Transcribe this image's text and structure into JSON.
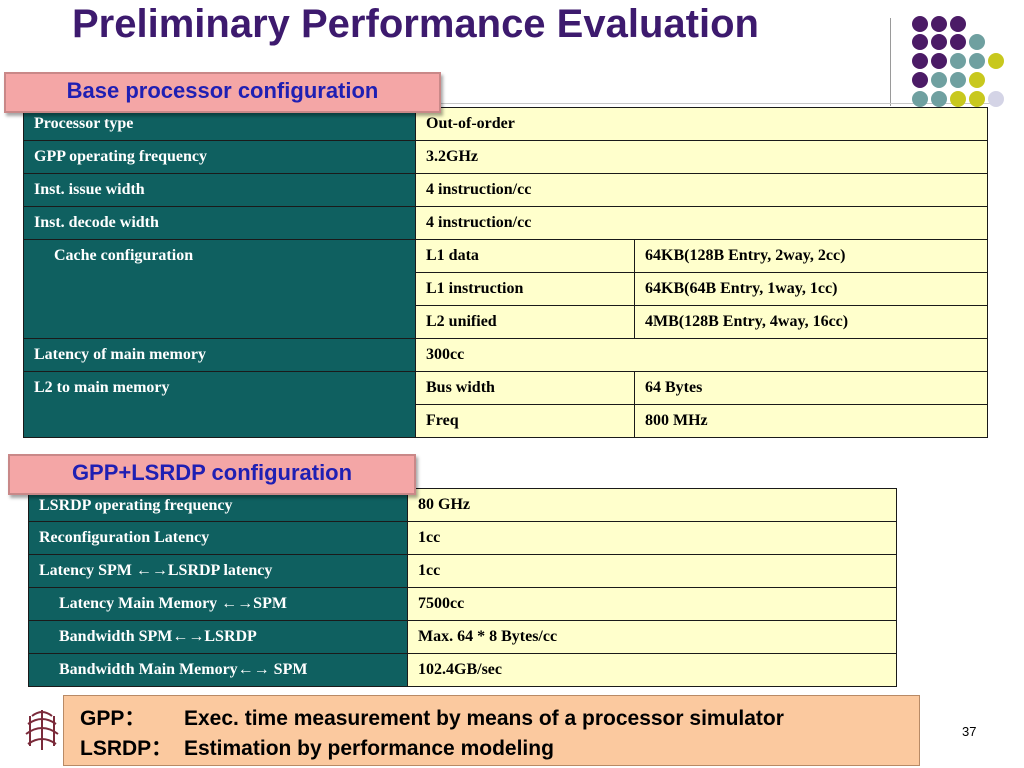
{
  "title": "Preliminary Performance Evaluation",
  "base_label": "Base processor configuration",
  "base": {
    "processor_type": {
      "key": "Processor type",
      "value": "Out-of-order"
    },
    "gpp_freq": {
      "key": "GPP operating frequency",
      "value": "3.2GHz"
    },
    "issue_width": {
      "key": "Inst. issue width",
      "value": "4 instruction/cc"
    },
    "decode_width": {
      "key": "Inst. decode width",
      "value": "4 instruction/cc"
    },
    "cache": {
      "key": "Cache configuration",
      "rows": [
        {
          "name": "L1 data",
          "value": "64KB(128B Entry, 2way, 2cc)"
        },
        {
          "name": "L1 instruction",
          "value": "64KB(64B Entry, 1way, 1cc)"
        },
        {
          "name": "L2 unified",
          "value": "4MB(128B Entry, 4way, 16cc)"
        }
      ]
    },
    "mem_latency": {
      "key": "Latency of main memory",
      "value": "300cc"
    },
    "l2_to_mem": {
      "key": "L2 to main memory",
      "rows": [
        {
          "name": "Bus width",
          "value": "64 Bytes"
        },
        {
          "name": "Freq",
          "value": "800 MHz"
        }
      ]
    }
  },
  "lsrdp_label": "GPP+LSRDP configuration",
  "lsrdp": [
    {
      "key": "LSRDP operating frequency",
      "value": "80 GHz"
    },
    {
      "key": "Reconfiguration Latency",
      "value": "1cc"
    },
    {
      "key": "Latency SPM ←→LSRDP latency",
      "value": "1cc"
    },
    {
      "key": "Latency Main Memory ←→SPM",
      "value": "7500cc"
    },
    {
      "key": "Bandwidth SPM←→LSRDP",
      "value": "Max. 64 * 8 Bytes/cc"
    },
    {
      "key": "Bandwidth Main Memory←→ SPM",
      "value": "102.4GB/sec"
    }
  ],
  "note": [
    {
      "key": "GPP：",
      "text": "Exec. time measurement by means of a processor simulator"
    },
    {
      "key": "LSRDP：",
      "text": "Estimation by performance modeling"
    }
  ],
  "page_number": "37",
  "colors": {
    "title": "#3d1a6e",
    "table_key_bg": "#0f6060",
    "table_value_bg": "#ffffcc",
    "label_bg": "#f4a6a6",
    "label_text": "#1f1fb3",
    "note_bg": "#fbc99f",
    "dot_purple": "#4b1b66",
    "dot_teal": "#6fa0a0",
    "dot_yellow": "#c8c81e",
    "dot_lavender": "#d4d4e6"
  }
}
